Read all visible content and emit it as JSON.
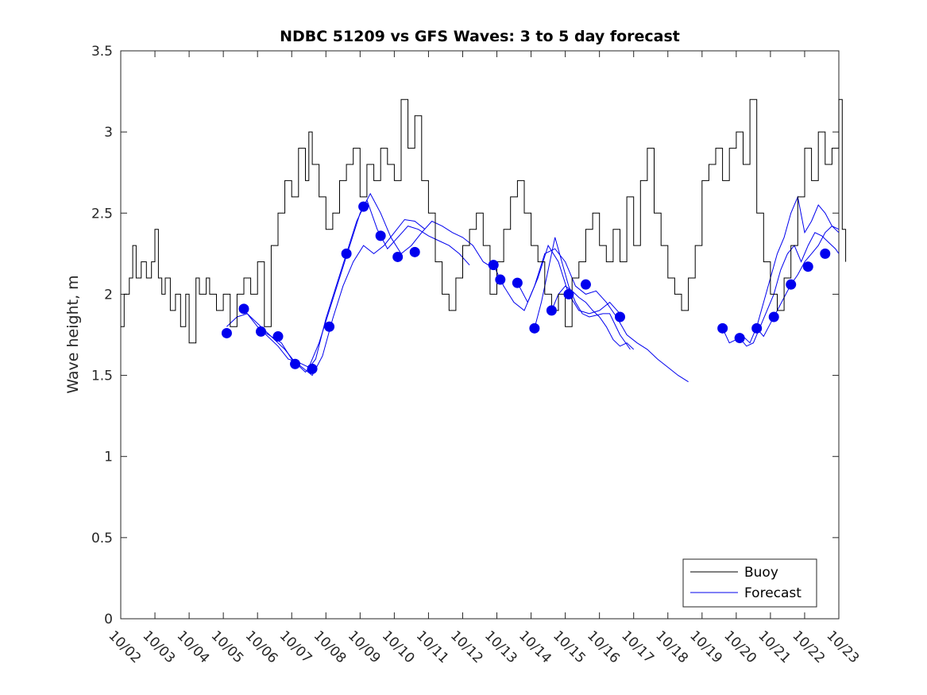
{
  "chart_data": {
    "type": "line",
    "title": "NDBC 51209 vs GFS Waves: 3 to 5 day forecast",
    "xlabel": "",
    "ylabel": "Wave height, m",
    "xlim": [
      0,
      21
    ],
    "ylim": [
      0,
      3.5
    ],
    "yticks": [
      "0",
      "0.5",
      "1",
      "1.5",
      "2",
      "2.5",
      "3",
      "3.5"
    ],
    "ytick_values": [
      0,
      0.5,
      1,
      1.5,
      2,
      2.5,
      3,
      3.5
    ],
    "xticks": [
      "10/02",
      "10/03",
      "10/04",
      "10/05",
      "10/06",
      "10/07",
      "10/08",
      "10/09",
      "10/10",
      "10/11",
      "10/12",
      "10/13",
      "10/14",
      "10/15",
      "10/16",
      "10/17",
      "10/18",
      "10/19",
      "10/20",
      "10/21",
      "10/22",
      "10/23"
    ],
    "x_unit": "days since 10/02 00:00",
    "legend": {
      "position": "bottom-right",
      "entries": [
        "Buoy",
        "Forecast"
      ]
    },
    "colors": {
      "buoy": "#000000",
      "forecast": "#0000ee",
      "axis": "#262626"
    },
    "series": [
      {
        "name": "Buoy",
        "x": [
          0,
          0.1,
          0.25,
          0.35,
          0.45,
          0.6,
          0.75,
          0.9,
          1.0,
          1.1,
          1.2,
          1.3,
          1.45,
          1.6,
          1.75,
          1.9,
          2.0,
          2.2,
          2.3,
          2.5,
          2.6,
          2.8,
          3.0,
          3.2,
          3.4,
          3.6,
          3.8,
          4.0,
          4.2,
          4.4,
          4.6,
          4.8,
          5.0,
          5.2,
          5.4,
          5.5,
          5.6,
          5.8,
          6.0,
          6.2,
          6.4,
          6.6,
          6.8,
          7.0,
          7.2,
          7.4,
          7.6,
          7.8,
          8.0,
          8.2,
          8.4,
          8.6,
          8.8,
          9.0,
          9.2,
          9.4,
          9.6,
          9.8,
          10.0,
          10.2,
          10.4,
          10.6,
          10.8,
          11.0,
          11.2,
          11.4,
          11.6,
          11.8,
          12.0,
          12.2,
          12.4,
          12.6,
          12.8,
          13.0,
          13.2,
          13.4,
          13.6,
          13.8,
          14.0,
          14.2,
          14.4,
          14.6,
          14.8,
          15.0,
          15.2,
          15.4,
          15.6,
          15.8,
          16.0,
          16.2,
          16.4,
          16.6,
          16.8,
          17.0,
          17.2,
          17.4,
          17.6,
          17.8,
          18.0,
          18.2,
          18.4,
          18.6,
          18.8,
          19.0,
          19.2,
          19.4,
          19.6,
          19.8,
          20.0,
          20.2,
          20.4,
          20.6,
          20.8,
          21.0,
          21.1,
          21.2
        ],
        "y": [
          1.8,
          2.0,
          2.1,
          2.3,
          2.1,
          2.2,
          2.1,
          2.2,
          2.4,
          2.1,
          2.0,
          2.1,
          1.9,
          2.0,
          1.8,
          2.0,
          1.7,
          2.1,
          2.0,
          2.1,
          2.0,
          1.9,
          2.0,
          1.8,
          2.0,
          2.1,
          2.0,
          2.2,
          1.8,
          2.3,
          2.5,
          2.7,
          2.6,
          2.9,
          2.7,
          3.0,
          2.8,
          2.6,
          2.4,
          2.5,
          2.7,
          2.8,
          2.9,
          2.6,
          2.8,
          2.7,
          2.9,
          2.8,
          2.7,
          3.2,
          2.9,
          3.1,
          2.7,
          2.5,
          2.2,
          2.0,
          1.9,
          2.1,
          2.3,
          2.4,
          2.5,
          2.3,
          2.0,
          2.2,
          2.4,
          2.6,
          2.7,
          2.5,
          2.3,
          2.2,
          2.0,
          1.9,
          2.0,
          1.8,
          2.1,
          2.2,
          2.4,
          2.5,
          2.3,
          2.2,
          2.4,
          2.2,
          2.6,
          2.3,
          2.7,
          2.9,
          2.5,
          2.3,
          2.1,
          2.0,
          1.9,
          2.1,
          2.3,
          2.7,
          2.8,
          2.9,
          2.7,
          2.9,
          3.0,
          2.8,
          3.2,
          2.5,
          2.2,
          2.0,
          1.9,
          2.1,
          2.3,
          2.6,
          2.9,
          2.7,
          3.0,
          2.8,
          2.9,
          3.2,
          2.4,
          2.2
        ],
        "x_note": "approximate trace read from the plot"
      }
    ],
    "forecast_markers": {
      "name": "Forecast",
      "x": [
        3.1,
        3.6,
        4.1,
        4.6,
        5.1,
        5.6,
        6.1,
        6.6,
        7.1,
        7.6,
        8.1,
        8.6,
        10.9,
        11.1,
        11.6,
        12.1,
        12.6,
        13.1,
        13.6,
        14.6,
        17.6,
        18.1,
        18.6,
        19.1,
        19.6,
        20.1,
        20.6
      ],
      "y": [
        1.76,
        1.91,
        1.77,
        1.74,
        1.57,
        1.54,
        1.8,
        2.25,
        2.54,
        2.36,
        2.23,
        2.26,
        2.18,
        2.09,
        2.07,
        1.79,
        1.9,
        2.0,
        2.06,
        1.86,
        1.79,
        1.73,
        1.79,
        1.86,
        2.06,
        2.17,
        2.25
      ]
    },
    "forecast_lines": [
      {
        "x": [
          3.1,
          3.4,
          3.7,
          4.0,
          4.3,
          4.6,
          4.9,
          5.2,
          5.5,
          5.8,
          6.1,
          6.4,
          6.7,
          7.0,
          7.3,
          7.6,
          7.9,
          8.2,
          8.5,
          8.8,
          9.1,
          9.4,
          9.7,
          10.0,
          10.3,
          10.6,
          10.9
        ],
        "y": [
          1.8,
          1.86,
          1.88,
          1.8,
          1.74,
          1.68,
          1.6,
          1.58,
          1.55,
          1.7,
          1.9,
          2.1,
          2.3,
          2.5,
          2.62,
          2.5,
          2.35,
          2.25,
          2.3,
          2.38,
          2.45,
          2.42,
          2.38,
          2.35,
          2.3,
          2.2,
          2.16
        ]
      },
      {
        "x": [
          3.6,
          3.9,
          4.2,
          4.5,
          4.8,
          5.1,
          5.4,
          5.7,
          6.0,
          6.3,
          6.6,
          6.9,
          7.2,
          7.5,
          7.8,
          8.1,
          8.4,
          8.7,
          9.0,
          9.3,
          9.6,
          9.9,
          10.2
        ],
        "y": [
          1.9,
          1.84,
          1.78,
          1.72,
          1.66,
          1.58,
          1.52,
          1.6,
          1.85,
          2.05,
          2.25,
          2.45,
          2.58,
          2.4,
          2.28,
          2.35,
          2.42,
          2.4,
          2.36,
          2.33,
          2.3,
          2.25,
          2.18
        ]
      },
      {
        "x": [
          4.1,
          4.4,
          4.7,
          5.0,
          5.3,
          5.6,
          5.9,
          6.2,
          6.5,
          6.8,
          7.1,
          7.4,
          7.7,
          8.0,
          8.3,
          8.6,
          8.9
        ],
        "y": [
          1.78,
          1.74,
          1.7,
          1.6,
          1.55,
          1.5,
          1.62,
          1.85,
          2.05,
          2.2,
          2.3,
          2.25,
          2.3,
          2.38,
          2.46,
          2.45,
          2.4
        ]
      },
      {
        "x": [
          10.9,
          11.2,
          11.5,
          11.8,
          12.1,
          12.4,
          12.7,
          13.0,
          13.3,
          13.6,
          13.9,
          14.2,
          14.5,
          14.8,
          15.1,
          15.4,
          15.7,
          16.0,
          16.3,
          16.6
        ],
        "y": [
          2.18,
          2.05,
          1.95,
          1.9,
          2.05,
          2.25,
          2.28,
          2.2,
          2.05,
          2.0,
          2.02,
          1.95,
          1.86,
          1.75,
          1.7,
          1.66,
          1.6,
          1.55,
          1.5,
          1.46
        ]
      },
      {
        "x": [
          11.6,
          11.9,
          12.2,
          12.5,
          12.8,
          13.1,
          13.4,
          13.7,
          14.0,
          14.3,
          14.6
        ],
        "y": [
          2.07,
          1.95,
          2.1,
          2.3,
          2.2,
          2.0,
          1.9,
          1.88,
          1.9,
          1.95,
          1.88
        ]
      },
      {
        "x": [
          12.1,
          12.3,
          12.5,
          12.7,
          12.9,
          13.1,
          13.3,
          13.5,
          13.7,
          13.9,
          14.1,
          14.3,
          14.6,
          14.9
        ],
        "y": [
          1.79,
          1.95,
          2.15,
          2.35,
          2.2,
          2.05,
          1.95,
          1.88,
          1.86,
          1.87,
          1.88,
          1.88,
          1.75,
          1.66
        ]
      },
      {
        "x": [
          12.6,
          12.8,
          13.0,
          13.2,
          13.4,
          13.6,
          13.8,
          14.0,
          14.2,
          14.4,
          14.6,
          14.8,
          15.0
        ],
        "y": [
          1.9,
          2.0,
          2.05,
          2.02,
          1.98,
          1.95,
          1.9,
          1.86,
          1.8,
          1.72,
          1.68,
          1.7,
          1.66
        ]
      },
      {
        "x": [
          17.6,
          17.8,
          18.0,
          18.2,
          18.4,
          18.6,
          18.8,
          19.0,
          19.2,
          19.4,
          19.6,
          19.8,
          20.0,
          20.2,
          20.4,
          20.6,
          20.8,
          21.0
        ],
        "y": [
          1.79,
          1.7,
          1.72,
          1.74,
          1.7,
          1.8,
          1.95,
          2.1,
          2.25,
          2.35,
          2.5,
          2.6,
          2.38,
          2.45,
          2.55,
          2.5,
          2.42,
          2.38
        ]
      },
      {
        "x": [
          18.1,
          18.3,
          18.5,
          18.7,
          18.9,
          19.1,
          19.3,
          19.5,
          19.7,
          19.9,
          20.1,
          20.3,
          20.5,
          20.7,
          20.9,
          21.0
        ],
        "y": [
          1.73,
          1.68,
          1.7,
          1.8,
          1.9,
          2.0,
          2.15,
          2.25,
          2.3,
          2.2,
          2.3,
          2.38,
          2.36,
          2.32,
          2.28,
          2.25
        ]
      },
      {
        "x": [
          18.6,
          18.8,
          19.0,
          19.2,
          19.4,
          19.6,
          19.8,
          20.0,
          20.2,
          20.4,
          20.6,
          20.8,
          21.0
        ],
        "y": [
          1.79,
          1.74,
          1.82,
          1.9,
          1.98,
          2.06,
          2.12,
          2.2,
          2.25,
          2.3,
          2.38,
          2.42,
          2.4
        ]
      }
    ]
  }
}
